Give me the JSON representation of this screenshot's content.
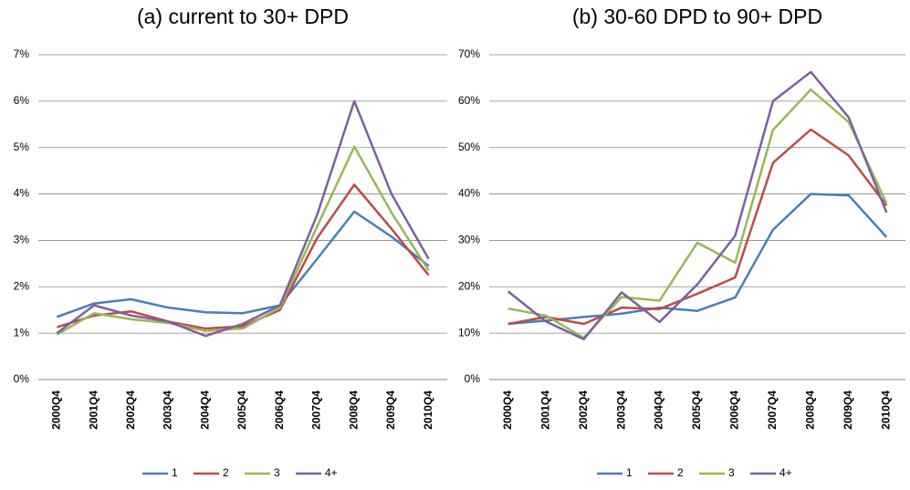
{
  "chart_data": [
    {
      "type": "line",
      "title": "(a)  current to 30+ DPD",
      "categories": [
        "2000Q4",
        "2001Q4",
        "2002Q4",
        "2003Q4",
        "2004Q4",
        "2005Q4",
        "2006Q4",
        "2007Q4",
        "2008Q4",
        "2009Q4",
        "2010Q4"
      ],
      "ylim": [
        0,
        7
      ],
      "yticks": [
        {
          "value": 0,
          "label": "0%"
        },
        {
          "value": 1,
          "label": "1%"
        },
        {
          "value": 2,
          "label": "2%"
        },
        {
          "value": 3,
          "label": "3%"
        },
        {
          "value": 4,
          "label": "4%"
        },
        {
          "value": 5,
          "label": "5%"
        },
        {
          "value": 6,
          "label": "6%"
        },
        {
          "value": 7,
          "label": "7%"
        }
      ],
      "grid": true,
      "legend": "bottom",
      "series": [
        {
          "name": "1",
          "color": "#4a7ebb",
          "values": [
            1.35,
            1.64,
            1.73,
            1.55,
            1.45,
            1.43,
            1.6,
            2.6,
            3.62,
            3.08,
            2.45
          ]
        },
        {
          "name": "2",
          "color": "#be4b48",
          "values": [
            1.13,
            1.38,
            1.47,
            1.25,
            1.1,
            1.15,
            1.5,
            3.05,
            4.2,
            3.25,
            2.25
          ]
        },
        {
          "name": "3",
          "color": "#98b954",
          "values": [
            0.97,
            1.43,
            1.3,
            1.22,
            1.05,
            1.1,
            1.55,
            3.3,
            5.02,
            3.6,
            2.35
          ]
        },
        {
          "name": "4+",
          "color": "#7d60a0",
          "values": [
            1.0,
            1.6,
            1.38,
            1.25,
            0.94,
            1.2,
            1.6,
            3.55,
            6.0,
            4.0,
            2.6
          ]
        }
      ]
    },
    {
      "type": "line",
      "title": "(b)  30-60 DPD to 90+ DPD",
      "categories": [
        "2000Q4",
        "2001Q4",
        "2002Q4",
        "2003Q4",
        "2004Q4",
        "2005Q4",
        "2006Q4",
        "2007Q4",
        "2008Q4",
        "2009Q4",
        "2010Q4"
      ],
      "ylim": [
        0,
        70
      ],
      "yticks": [
        {
          "value": 0,
          "label": "0%"
        },
        {
          "value": 10,
          "label": "10%"
        },
        {
          "value": 20,
          "label": "20%"
        },
        {
          "value": 30,
          "label": "30%"
        },
        {
          "value": 40,
          "label": "40%"
        },
        {
          "value": 50,
          "label": "50%"
        },
        {
          "value": 60,
          "label": "60%"
        },
        {
          "value": 70,
          "label": "70%"
        }
      ],
      "grid": true,
      "legend": "bottom",
      "series": [
        {
          "name": "1",
          "color": "#4a7ebb",
          "values": [
            12,
            12.7,
            13.5,
            14.2,
            15.5,
            14.8,
            17.7,
            32.3,
            40,
            39.7,
            30.7
          ]
        },
        {
          "name": "2",
          "color": "#be4b48",
          "values": [
            12,
            13.5,
            12,
            15.5,
            15.2,
            18.5,
            22,
            46.7,
            53.9,
            48.3,
            37.5
          ]
        },
        {
          "name": "3",
          "color": "#98b954",
          "values": [
            15.3,
            13.8,
            9,
            17.8,
            17,
            29.5,
            25.2,
            53.8,
            62.5,
            55.5,
            38
          ]
        },
        {
          "name": "4+",
          "color": "#7d60a0",
          "values": [
            19,
            12.5,
            8.7,
            18.8,
            12.4,
            20.5,
            31,
            60,
            66.3,
            56.5,
            36
          ]
        }
      ]
    }
  ]
}
